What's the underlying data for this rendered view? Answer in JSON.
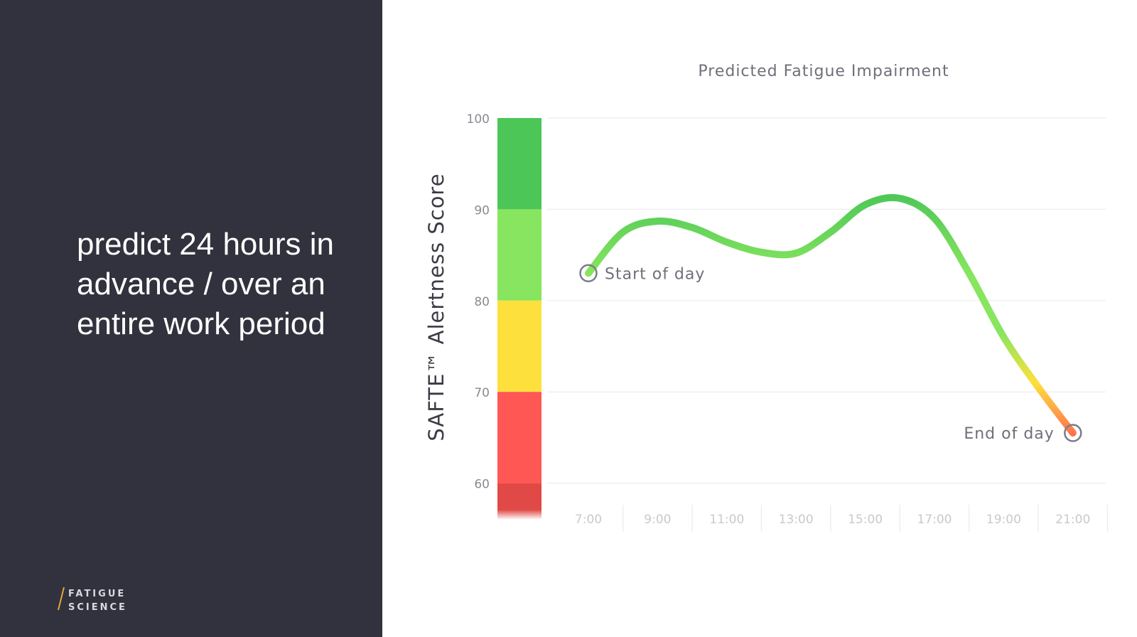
{
  "slide": {
    "headline": "predict 24 hours in advance / over an entire work period"
  },
  "logo": {
    "line1": "FATIGUE",
    "line2": "SCIENCE",
    "accent_color": "#e8a33c"
  },
  "colors": {
    "panel_bg": "#32323e",
    "zone_very_high": "#4bc657",
    "zone_high": "#87e55f",
    "zone_moderate": "#fde03c",
    "zone_low": "#ff5753",
    "zone_very_low": "#e04945"
  },
  "chart_data": {
    "type": "line",
    "title": "Predicted Fatigue Impairment",
    "ylabel": "SAFTE™ Alertness Score",
    "xlabel": "",
    "ylim": [
      56,
      100
    ],
    "y_ticks": [
      100,
      90,
      80,
      70,
      60
    ],
    "x_ticks": [
      "7:00",
      "9:00",
      "11:00",
      "13:00",
      "15:00",
      "17:00",
      "19:00",
      "21:00"
    ],
    "grid": true,
    "zones": [
      {
        "from": 90,
        "to": 100,
        "color": "#4bc657"
      },
      {
        "from": 80,
        "to": 90,
        "color": "#87e55f"
      },
      {
        "from": 70,
        "to": 80,
        "color": "#fde03c"
      },
      {
        "from": 60,
        "to": 70,
        "color": "#ff5753"
      },
      {
        "from": 56,
        "to": 60,
        "color": "#e04945"
      }
    ],
    "series": [
      {
        "x": [
          "7:00",
          "8:00",
          "9:00",
          "10:00",
          "11:00",
          "12:00",
          "13:00",
          "14:00",
          "15:00",
          "16:00",
          "17:00",
          "18:00",
          "19:00",
          "20:00",
          "21:00"
        ],
        "values": [
          83,
          87.5,
          88.7,
          88,
          86.4,
          85.3,
          85.2,
          87.5,
          90.5,
          91.2,
          89,
          83,
          76,
          70.5,
          65.5
        ]
      }
    ],
    "annotations": [
      {
        "label": "Start of day",
        "x": "7:00",
        "y": 83
      },
      {
        "label": "End of day",
        "x": "21:00",
        "y": 65.5
      }
    ]
  }
}
